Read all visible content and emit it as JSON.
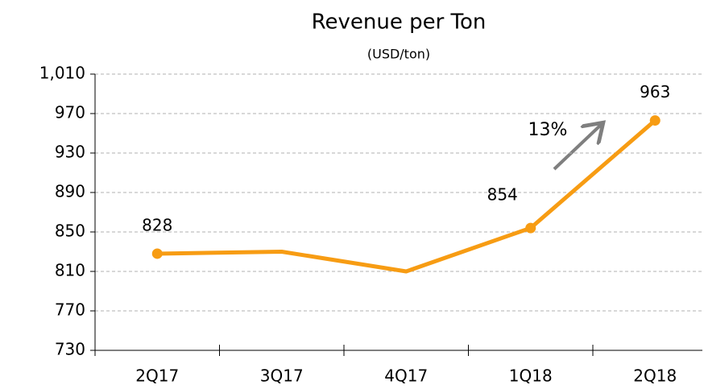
{
  "chart_data": {
    "type": "line",
    "title": "Revenue per Ton",
    "subtitle": "(USD/ton)",
    "categories": [
      "2Q17",
      "3Q17",
      "4Q17",
      "1Q18",
      "2Q18"
    ],
    "series": [
      {
        "name": "Revenue per Ton",
        "color": "#f79c13",
        "values": [
          828,
          830,
          810,
          854,
          963
        ]
      }
    ],
    "show_labels": [
      true,
      false,
      false,
      true,
      true
    ],
    "ylim": [
      730,
      1010
    ],
    "yticks": [
      730,
      770,
      810,
      850,
      890,
      930,
      970,
      {
        "value": 1010,
        "label": "1,010"
      }
    ],
    "grid": true,
    "annotation": "13%"
  }
}
